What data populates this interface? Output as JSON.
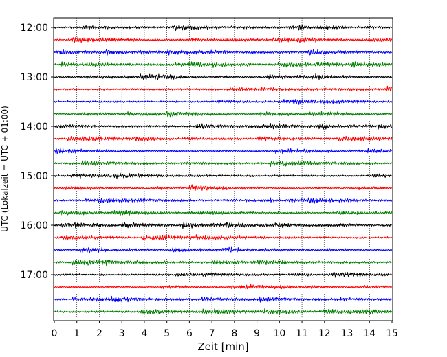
{
  "chart_data": {
    "type": "line",
    "title": "",
    "xlabel": "Zeit  [min]",
    "ylabel": "UTC (Lokalzeit = UTC + 01:00)",
    "xlim": [
      0,
      15
    ],
    "x_ticks": [
      "0",
      "1",
      "2",
      "3",
      "4",
      "5",
      "6",
      "7",
      "8",
      "9",
      "10",
      "11",
      "12",
      "13",
      "14",
      "15"
    ],
    "y_tick_labels": [
      "12:00",
      "13:00",
      "14:00",
      "15:00",
      "16:00",
      "17:00"
    ],
    "grid": {
      "vertical_dotted": true,
      "horizontal": false
    },
    "series_colors": [
      "#000000",
      "#ff0000",
      "#0000ff",
      "#008000"
    ],
    "traces": [
      {
        "start": "12:00",
        "color": "#000000"
      },
      {
        "start": "12:15",
        "color": "#ff0000"
      },
      {
        "start": "12:30",
        "color": "#0000ff"
      },
      {
        "start": "12:45",
        "color": "#008000"
      },
      {
        "start": "13:00",
        "color": "#000000"
      },
      {
        "start": "13:15",
        "color": "#ff0000"
      },
      {
        "start": "13:30",
        "color": "#0000ff"
      },
      {
        "start": "13:45",
        "color": "#008000"
      },
      {
        "start": "14:00",
        "color": "#000000"
      },
      {
        "start": "14:15",
        "color": "#ff0000"
      },
      {
        "start": "14:30",
        "color": "#0000ff"
      },
      {
        "start": "14:45",
        "color": "#008000"
      },
      {
        "start": "15:00",
        "color": "#000000"
      },
      {
        "start": "15:15",
        "color": "#ff0000"
      },
      {
        "start": "15:30",
        "color": "#0000ff"
      },
      {
        "start": "15:45",
        "color": "#008000"
      },
      {
        "start": "16:00",
        "color": "#000000"
      },
      {
        "start": "16:15",
        "color": "#ff0000"
      },
      {
        "start": "16:30",
        "color": "#0000ff"
      },
      {
        "start": "16:45",
        "color": "#008000"
      },
      {
        "start": "17:00",
        "color": "#000000"
      },
      {
        "start": "17:15",
        "color": "#ff0000"
      },
      {
        "start": "17:30",
        "color": "#0000ff"
      },
      {
        "start": "17:45",
        "color": "#008000"
      }
    ]
  }
}
